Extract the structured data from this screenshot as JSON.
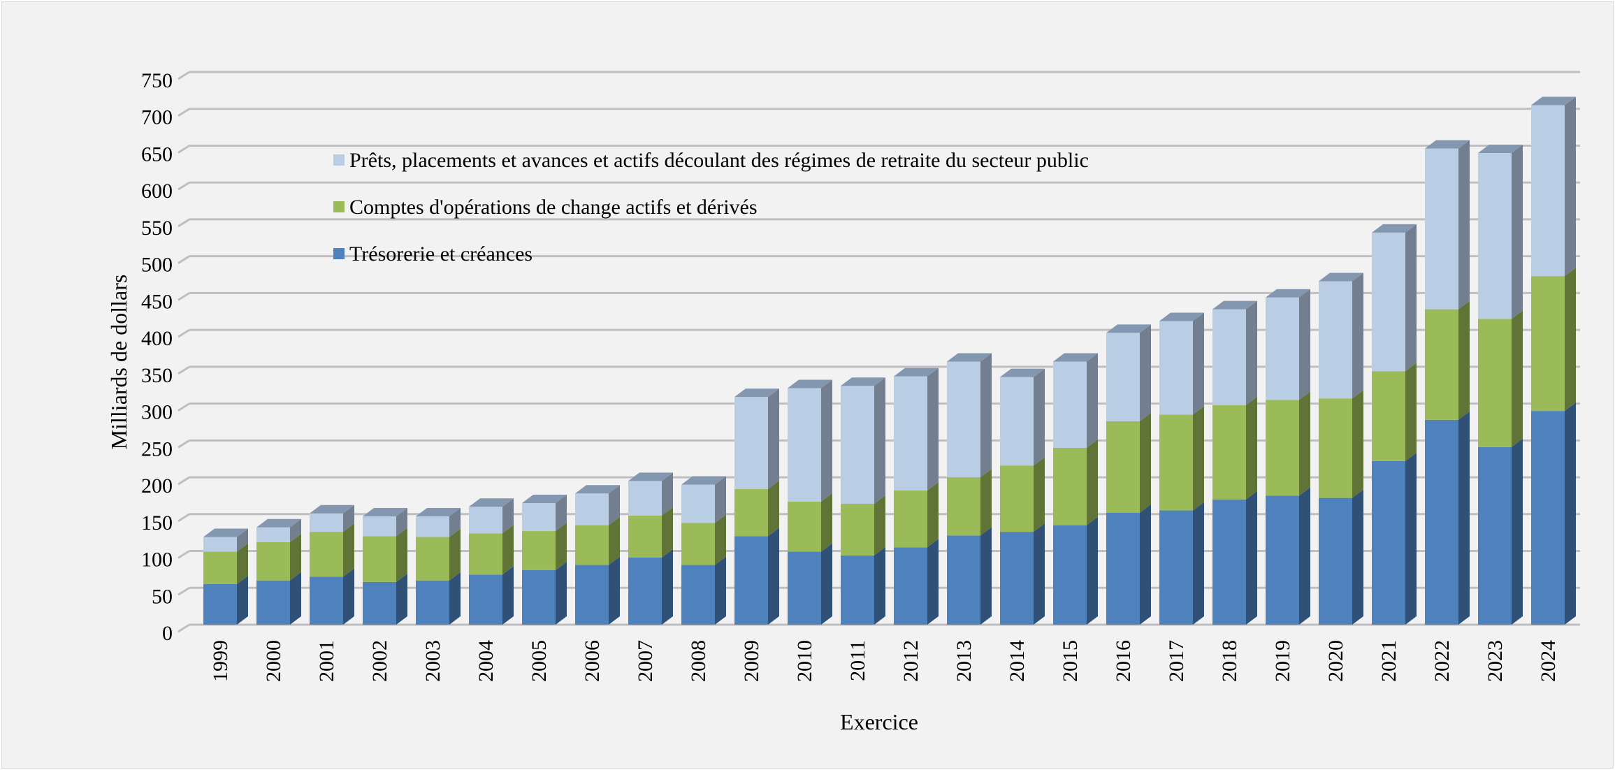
{
  "chart_data": {
    "type": "bar",
    "stacked": true,
    "style": "3d-column",
    "xlabel": "Exercice",
    "ylabel": "Milliards de dollars",
    "ylim": [
      0,
      750
    ],
    "yticks": [
      0,
      50,
      100,
      150,
      200,
      250,
      300,
      350,
      400,
      450,
      500,
      550,
      600,
      650,
      700,
      750
    ],
    "grid": true,
    "legend_position": "top-left",
    "categories": [
      "1999",
      "2000",
      "2001",
      "2002",
      "2003",
      "2004",
      "2005",
      "2006",
      "2007",
      "2008",
      "2009",
      "2010",
      "2011",
      "2012",
      "2013",
      "2014",
      "2015",
      "2016",
      "2017",
      "2018",
      "2019",
      "2020",
      "2021",
      "2022",
      "2023",
      "2024"
    ],
    "series": [
      {
        "name": "Trésorerie et créances",
        "color": "#4f81bd",
        "values": [
          55,
          60,
          65,
          58,
          60,
          68,
          74,
          81,
          91,
          81,
          120,
          99,
          94,
          105,
          121,
          126,
          135,
          152,
          155,
          170,
          175,
          172,
          222,
          278,
          241,
          290
        ]
      },
      {
        "name": "Comptes d'opérations de change actifs et dérivés",
        "color": "#9bbb59",
        "values": [
          44,
          52,
          61,
          62,
          59,
          56,
          53,
          54,
          57,
          57,
          64,
          68,
          70,
          77,
          79,
          90,
          105,
          124,
          130,
          128,
          130,
          135,
          122,
          150,
          174,
          183
        ]
      },
      {
        "name": "Prêts, placements et avances et actifs découlant des régimes de retraite du secteur public",
        "color": "#b9cde5",
        "values": [
          20,
          20,
          25,
          27,
          28,
          36,
          38,
          43,
          47,
          52,
          125,
          154,
          160,
          155,
          157,
          120,
          117,
          120,
          127,
          130,
          139,
          159,
          188,
          218,
          225,
          232
        ]
      }
    ]
  }
}
